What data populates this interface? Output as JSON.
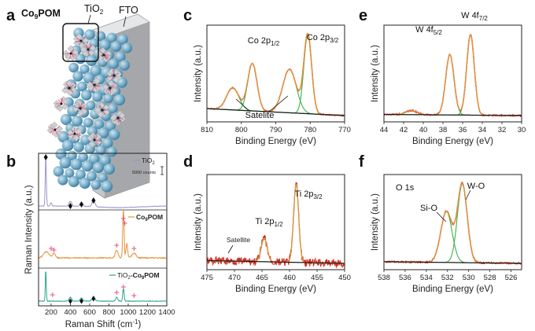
{
  "panel_letters": [
    "a",
    "b",
    "c",
    "d",
    "e",
    "f"
  ],
  "colors": {
    "orange": "#e8903a",
    "red": "#d42a1e",
    "green": "#3fb04a",
    "dark": "#1a1a1a",
    "purple": "#9b93c9",
    "teal": "#27a58a",
    "pinkmark": "#e8557a",
    "sphere": "#7ab0cc"
  },
  "panel_a": {
    "labels": {
      "com": "Co",
      "com_sub": "9",
      "com_tail": "POM",
      "tio2": "TiO",
      "tio2_sub": "2",
      "fto": "FTO"
    }
  },
  "panel_b": {
    "ylabel": "Raman Intensity (a.u.)",
    "xlabel_main": "Raman Shift (cm",
    "xlabel_sup": "-1",
    "xlabel_tail": ")",
    "xticks": [
      "200",
      "400",
      "600",
      "800",
      "1000",
      "1200",
      "1400"
    ],
    "legend1": {
      "a": "TiO",
      "sub": "2"
    },
    "scale": "5000 counts",
    "legend2": {
      "a": "Co",
      "sub": "9",
      "tail": "POM"
    },
    "legend3": {
      "a": "TiO",
      "sub": "2",
      "mid": "-Co",
      "sub2": "9",
      "tail": "POM"
    }
  },
  "chart_data": [
    {
      "id": "c",
      "type": "line",
      "xlabel": "Binding Energy (eV)",
      "ylabel": "Intensity (a.u.)",
      "xlim": [
        810,
        770
      ],
      "xticks": [
        810,
        800,
        790,
        780,
        770
      ],
      "annotations": {
        "p1": "Co 2p",
        "p1sub": "1/2",
        "p2": "Co 2p",
        "p2sub": "3/2",
        "sat": "Satelite"
      },
      "peaks": [
        {
          "center": 780.7,
          "height": 100
        },
        {
          "center": 786,
          "height": 55
        },
        {
          "center": 796.8,
          "height": 60
        },
        {
          "center": 802.5,
          "height": 28
        }
      ]
    },
    {
      "id": "d",
      "type": "line",
      "xlabel": "Binding Energy (eV)",
      "ylabel": "Intensity (a.u.)",
      "xlim": [
        475,
        450
      ],
      "xticks": [
        475,
        470,
        465,
        460,
        455,
        450
      ],
      "annotations": {
        "p1": "Ti 2p",
        "p1sub": "1/2",
        "p2": "Ti 2p",
        "p2sub": "3/2",
        "sat": "Satellite"
      },
      "peaks": [
        {
          "center": 458.8,
          "height": 100
        },
        {
          "center": 464.6,
          "height": 30
        }
      ]
    },
    {
      "id": "e",
      "type": "line",
      "xlabel": "Binding Energy (eV)",
      "ylabel": "Intensity (a.u.)",
      "xlim": [
        44,
        30
      ],
      "xticks": [
        44,
        42,
        40,
        38,
        36,
        34,
        32,
        30
      ],
      "annotations": {
        "p1": "W 4f",
        "p1sub": "5/2",
        "p2": "W 4f",
        "p2sub": "7/2"
      },
      "peaks": [
        {
          "center": 35.2,
          "height": 100
        },
        {
          "center": 37.3,
          "height": 75
        },
        {
          "center": 41.2,
          "height": 5
        }
      ]
    },
    {
      "id": "f",
      "type": "line",
      "xlabel": "Binding Energy (eV)",
      "ylabel": "Intensity (a.u.)",
      "xlim": [
        538,
        525
      ],
      "xticks": [
        538,
        536,
        534,
        532,
        530,
        528,
        526
      ],
      "annotations": {
        "title": "O 1s",
        "p1": "Si-O",
        "p2": "W-O"
      },
      "peaks": [
        {
          "center": 530.6,
          "height": 100
        },
        {
          "center": 532.1,
          "height": 65
        }
      ]
    }
  ]
}
